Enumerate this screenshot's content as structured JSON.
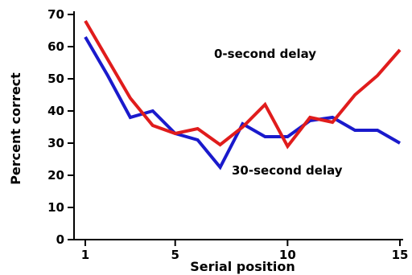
{
  "chart_data": {
    "type": "line",
    "title": "",
    "xlabel": "Serial position",
    "ylabel": "Percent correct",
    "xlim": [
      1,
      15
    ],
    "ylim": [
      0,
      70
    ],
    "x_ticks": [
      1,
      5,
      10,
      15
    ],
    "y_ticks": [
      0,
      10,
      20,
      30,
      40,
      50,
      60,
      70
    ],
    "grid": false,
    "x": [
      1,
      2,
      3,
      4,
      5,
      6,
      7,
      8,
      9,
      10,
      11,
      12,
      13,
      14,
      15
    ],
    "series": [
      {
        "name": "30-second delay",
        "color": "#1a1acc",
        "values": [
          63,
          51,
          38,
          40,
          33,
          31,
          22.5,
          36,
          32,
          32,
          37,
          38,
          34,
          34,
          30
        ]
      },
      {
        "name": "0-second delay",
        "color": "#e01c1c",
        "values": [
          68,
          56,
          44,
          35.5,
          33,
          34.5,
          29.5,
          35,
          42,
          29,
          38,
          36.5,
          45,
          51,
          59
        ]
      }
    ]
  }
}
